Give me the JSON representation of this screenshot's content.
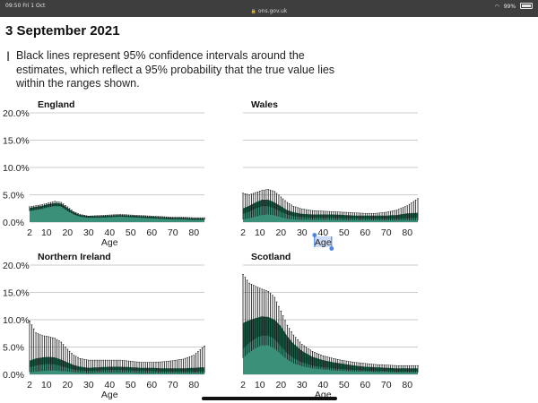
{
  "status_bar": {
    "time": "09:50",
    "date": "Fri 1 Oct",
    "url": "ons.gov.uk",
    "battery": "99%"
  },
  "page": {
    "date_heading": "3 September 2021",
    "note": "Black lines represent 95% confidence intervals around the estimates, which reflect a 95% probability that the true value lies within the ranges shown."
  },
  "colors": {
    "dark_band": "#175c47",
    "light_fill": "#3a9079",
    "ci_line": "#111111",
    "grid": "#cccccc",
    "selection": "#4a86e8"
  },
  "chart_data": [
    {
      "type": "area",
      "title": "England",
      "xlabel": "Age",
      "ylabel": "",
      "xlim": [
        2,
        85
      ],
      "ylim": [
        0,
        20
      ],
      "x_ticks": [
        "2",
        "10",
        "20",
        "30",
        "40",
        "50",
        "60",
        "70",
        "80"
      ],
      "y_ticks": [
        "20.0%",
        "15.0%",
        "10.0%",
        "5.0%",
        "0.0%"
      ],
      "show_y_ticks": true,
      "ages": [
        2,
        5,
        8,
        11,
        14,
        17,
        20,
        23,
        26,
        30,
        35,
        40,
        45,
        50,
        55,
        60,
        65,
        70,
        75,
        80,
        85
      ],
      "estimate": [
        2.2,
        2.4,
        2.6,
        2.9,
        3.1,
        3.0,
        2.2,
        1.5,
        1.1,
        0.9,
        0.9,
        1.0,
        1.1,
        1.0,
        0.9,
        0.8,
        0.7,
        0.6,
        0.6,
        0.5,
        0.5
      ],
      "lower": [
        1.9,
        2.1,
        2.3,
        2.6,
        2.8,
        2.7,
        1.9,
        1.3,
        0.9,
        0.8,
        0.8,
        0.9,
        1.0,
        0.9,
        0.8,
        0.7,
        0.6,
        0.5,
        0.5,
        0.4,
        0.4
      ],
      "upper": [
        2.6,
        2.8,
        3.0,
        3.3,
        3.5,
        3.4,
        2.6,
        1.8,
        1.3,
        1.1,
        1.1,
        1.2,
        1.3,
        1.2,
        1.1,
        1.0,
        0.9,
        0.8,
        0.8,
        0.7,
        0.7
      ],
      "ci_low": [
        2.0,
        2.2,
        2.4,
        2.7,
        2.9,
        2.8,
        2.0,
        1.4,
        1.0,
        0.8,
        0.8,
        0.9,
        1.0,
        0.9,
        0.8,
        0.7,
        0.6,
        0.5,
        0.5,
        0.4,
        0.4
      ],
      "ci_high": [
        2.8,
        3.0,
        3.2,
        3.5,
        3.8,
        3.6,
        2.8,
        1.9,
        1.4,
        1.1,
        1.2,
        1.3,
        1.4,
        1.3,
        1.2,
        1.1,
        1.0,
        0.9,
        0.9,
        0.8,
        0.8
      ]
    },
    {
      "type": "area",
      "title": "Wales",
      "xlabel": "Age",
      "ylabel": "",
      "xlim": [
        2,
        85
      ],
      "ylim": [
        0,
        20
      ],
      "x_ticks": [
        "2",
        "10",
        "20",
        "30",
        "40",
        "50",
        "60",
        "70",
        "80"
      ],
      "y_ticks": [
        "20.0%",
        "15.0%",
        "10.0%",
        "5.0%",
        "0.0%"
      ],
      "show_y_ticks": false,
      "ages": [
        2,
        5,
        8,
        11,
        14,
        17,
        20,
        23,
        26,
        30,
        35,
        40,
        45,
        50,
        55,
        60,
        65,
        70,
        75,
        80,
        85
      ],
      "estimate": [
        1.6,
        2.0,
        2.6,
        3.0,
        3.0,
        2.6,
        2.0,
        1.5,
        1.2,
        1.0,
        0.9,
        0.9,
        0.9,
        0.8,
        0.8,
        0.7,
        0.7,
        0.7,
        0.7,
        0.8,
        0.9
      ],
      "lower": [
        0.9,
        1.2,
        1.6,
        2.0,
        2.1,
        1.8,
        1.4,
        1.0,
        0.8,
        0.6,
        0.6,
        0.6,
        0.6,
        0.5,
        0.5,
        0.5,
        0.5,
        0.4,
        0.4,
        0.5,
        0.5
      ],
      "upper": [
        2.5,
        3.0,
        3.6,
        4.1,
        4.1,
        3.6,
        2.9,
        2.2,
        1.8,
        1.5,
        1.4,
        1.4,
        1.4,
        1.3,
        1.2,
        1.2,
        1.2,
        1.2,
        1.3,
        1.6,
        1.7
      ],
      "ci_low": [
        0.5,
        0.7,
        1.0,
        1.3,
        1.4,
        1.2,
        0.9,
        0.6,
        0.5,
        0.4,
        0.4,
        0.4,
        0.4,
        0.3,
        0.3,
        0.3,
        0.3,
        0.3,
        0.3,
        0.3,
        0.3
      ],
      "ci_high": [
        5.3,
        5.0,
        5.4,
        5.8,
        6.0,
        5.6,
        4.6,
        3.6,
        2.9,
        2.4,
        2.1,
        2.0,
        1.9,
        1.8,
        1.7,
        1.6,
        1.6,
        1.8,
        2.2,
        3.0,
        4.3
      ]
    },
    {
      "type": "area",
      "title": "Northern Ireland",
      "xlabel": "Age",
      "ylabel": "",
      "xlim": [
        2,
        85
      ],
      "ylim": [
        0,
        20
      ],
      "x_ticks": [
        "2",
        "10",
        "20",
        "30",
        "40",
        "50",
        "60",
        "70",
        "80"
      ],
      "y_ticks": [
        "20.0%",
        "15.0%",
        "10.0%",
        "5.0%",
        "0.0%"
      ],
      "show_y_ticks": true,
      "ages": [
        2,
        5,
        8,
        11,
        14,
        17,
        20,
        23,
        26,
        30,
        35,
        40,
        45,
        50,
        55,
        60,
        65,
        70,
        75,
        80,
        85
      ],
      "estimate": [
        1.4,
        1.7,
        1.9,
        2.0,
        1.9,
        1.6,
        1.3,
        1.0,
        0.8,
        0.7,
        0.8,
        0.9,
        0.9,
        0.8,
        0.7,
        0.7,
        0.6,
        0.6,
        0.6,
        0.6,
        0.6
      ],
      "lower": [
        0.7,
        1.0,
        1.1,
        1.2,
        1.2,
        1.0,
        0.8,
        0.6,
        0.5,
        0.4,
        0.5,
        0.5,
        0.5,
        0.5,
        0.4,
        0.4,
        0.4,
        0.4,
        0.3,
        0.3,
        0.3
      ],
      "upper": [
        2.5,
        2.9,
        3.1,
        3.2,
        3.1,
        2.7,
        2.2,
        1.7,
        1.4,
        1.2,
        1.3,
        1.4,
        1.4,
        1.3,
        1.2,
        1.2,
        1.1,
        1.1,
        1.1,
        1.2,
        1.3
      ],
      "ci_low": [
        0.4,
        0.5,
        0.6,
        0.7,
        0.7,
        0.6,
        0.5,
        0.4,
        0.3,
        0.2,
        0.3,
        0.3,
        0.3,
        0.3,
        0.2,
        0.2,
        0.2,
        0.2,
        0.2,
        0.2,
        0.2
      ],
      "ci_high": [
        9.8,
        7.6,
        7.1,
        6.9,
        6.6,
        5.9,
        4.6,
        3.5,
        2.9,
        2.6,
        2.6,
        2.6,
        2.6,
        2.4,
        2.2,
        2.2,
        2.3,
        2.5,
        2.8,
        3.5,
        5.2
      ]
    },
    {
      "type": "area",
      "title": "Scotland",
      "xlabel": "Age",
      "ylabel": "",
      "xlim": [
        2,
        85
      ],
      "ylim": [
        0,
        20
      ],
      "x_ticks": [
        "2",
        "10",
        "20",
        "30",
        "40",
        "50",
        "60",
        "70",
        "80"
      ],
      "y_ticks": [
        "20.0%",
        "15.0%",
        "10.0%",
        "5.0%",
        "0.0%"
      ],
      "show_y_ticks": false,
      "ages": [
        2,
        5,
        8,
        11,
        14,
        17,
        20,
        23,
        26,
        30,
        35,
        40,
        45,
        50,
        55,
        60,
        65,
        70,
        75,
        80,
        85
      ],
      "estimate": [
        4.8,
        5.9,
        6.7,
        7.2,
        7.2,
        6.6,
        5.3,
        4.0,
        3.1,
        2.3,
        1.7,
        1.4,
        1.2,
        1.0,
        0.9,
        0.8,
        0.7,
        0.7,
        0.6,
        0.6,
        0.6
      ],
      "lower": [
        3.6,
        4.6,
        5.4,
        5.9,
        5.9,
        5.3,
        4.2,
        3.1,
        2.4,
        1.8,
        1.3,
        1.1,
        0.9,
        0.8,
        0.7,
        0.6,
        0.5,
        0.5,
        0.4,
        0.4,
        0.4
      ],
      "upper": [
        9.4,
        9.9,
        10.3,
        10.6,
        10.5,
        10.0,
        8.8,
        7.0,
        5.6,
        4.3,
        3.2,
        2.6,
        2.2,
        1.9,
        1.6,
        1.4,
        1.3,
        1.2,
        1.1,
        1.1,
        1.1
      ],
      "ci_low": [
        3.0,
        4.0,
        4.8,
        5.3,
        5.3,
        4.7,
        3.7,
        2.7,
        2.0,
        1.5,
        1.1,
        0.9,
        0.7,
        0.6,
        0.5,
        0.5,
        0.4,
        0.4,
        0.3,
        0.3,
        0.3
      ],
      "ci_high": [
        18.3,
        16.7,
        16.1,
        15.6,
        15.2,
        14.1,
        11.6,
        9.0,
        7.2,
        5.5,
        4.2,
        3.4,
        2.9,
        2.5,
        2.2,
        2.0,
        1.8,
        1.7,
        1.6,
        1.6,
        1.6
      ]
    }
  ]
}
